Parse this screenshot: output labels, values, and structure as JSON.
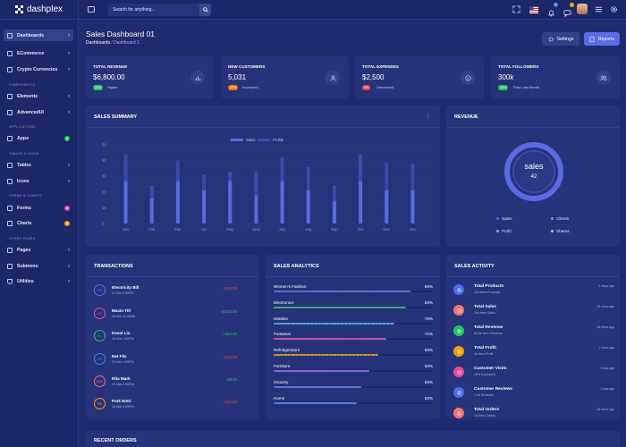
{
  "brand": {
    "name": "dashplex"
  },
  "header": {
    "search_placeholder": "Search for anything...",
    "notif_count_1": "1",
    "notif_count_2": "2"
  },
  "sidebar": {
    "items": [
      {
        "label": "Dashboards"
      },
      {
        "label": "ECommerce"
      },
      {
        "label": "Crypto Currencies"
      },
      {
        "label": "Elements"
      },
      {
        "label": "AdvancedUI"
      },
      {
        "label": "Apps",
        "badge": "2"
      },
      {
        "label": "Tables"
      },
      {
        "label": "Icons"
      },
      {
        "label": "Forms",
        "badge": "3"
      },
      {
        "label": "Charts",
        "badge": "4"
      },
      {
        "label": "Pages"
      },
      {
        "label": "Submenu"
      },
      {
        "label": "Utilities"
      }
    ],
    "headings": [
      "COMPONENTS",
      "APPLICATIONS",
      "TABLES & ICONS",
      "FORMS & CHARTS",
      "OTHER PAGES"
    ],
    "badge_colors": {
      "apps": "#22c55e",
      "forms": "#ec4899",
      "charts": "#f59e0b"
    }
  },
  "page": {
    "title": "Sales Dashboard 01",
    "breadcrumb_root": "Dashboards",
    "breadcrumb_current": "/ Dashboard 1",
    "settings_label": "Settings",
    "reports_label": "Reports"
  },
  "stats": [
    {
      "label": "TOTAL REVENUE",
      "value": "$6,800.00",
      "pill": "20%",
      "note": "Higher",
      "pill_color": "#22c55e",
      "icon": "bar-chart-icon"
    },
    {
      "label": "NEW CUSTOMERS",
      "value": "5,031",
      "pill": "20%",
      "note": "Increased",
      "pill_color": "#f97316",
      "icon": "user-icon"
    },
    {
      "label": "TOTAL EXPENSES",
      "value": "$2,500",
      "pill": "5%",
      "note": "Decreased",
      "pill_color": "#ef4444",
      "icon": "dollar-icon"
    },
    {
      "label": "TOTAL FOLLOWERS",
      "value": "300k",
      "pill": "10%",
      "note": "Than Last Month",
      "pill_color": "#22c55e",
      "icon": "users-icon"
    }
  ],
  "sales_summary": {
    "title": "SALES SUMMARY"
  },
  "chart_data": {
    "type": "bar",
    "title": "SALES SUMMARY",
    "categories": [
      "Jan",
      "Feb",
      "Mar",
      "Apr",
      "May",
      "June",
      "July",
      "Aug",
      "Sep",
      "Oct",
      "Nov",
      "Dec"
    ],
    "series": [
      {
        "name": "Sales",
        "values": [
          27,
          16,
          27,
          21,
          27,
          18,
          27,
          21,
          14,
          27,
          21,
          21
        ],
        "color": "#5a6ae0"
      },
      {
        "name": "Profits",
        "values": [
          44,
          24,
          40,
          31,
          33,
          33,
          42,
          36,
          24,
          44,
          39,
          38
        ],
        "color": "#3c4aaa"
      }
    ],
    "ylim": [
      0,
      50
    ],
    "yticks": [
      "0",
      "5",
      "10",
      "15",
      "20",
      "25",
      "30",
      "35",
      "40",
      "45",
      "50"
    ],
    "legend_position": "top-center",
    "grid": true
  },
  "revenue": {
    "title": "REVENUE",
    "center_label": "sales",
    "center_value": "42",
    "legend": [
      {
        "label": "Sales",
        "color": "#5a6ae0"
      },
      {
        "label": "Clients",
        "color": "#7f8be8"
      },
      {
        "label": "Profit",
        "color": "#9aa3e6"
      },
      {
        "label": "Shares",
        "color": "#b5bcef"
      }
    ]
  },
  "transactions": {
    "title": "TRANSACTIONS",
    "items": [
      {
        "initials": "EB",
        "name": "Electricity Bill",
        "date": "11 Mar 3:00PM",
        "amount": "-$15.00",
        "color": "#4f6cf0",
        "amt_color": "#ef4444"
      },
      {
        "initials": "MT",
        "name": "Maxin Till",
        "date": "16 Mar 11:00AM",
        "amount": "+$100.00",
        "color": "#ec4899",
        "amt_color": "#22c55e"
      },
      {
        "initials": "KL",
        "name": "Keval Lia",
        "date": "16 Mar 1:00PM",
        "amount": "+$80.00",
        "color": "#22c55e",
        "amt_color": "#22c55e"
      },
      {
        "initials": "NF",
        "name": "Net Flix",
        "date": "20 Mar 4:00PM",
        "amount": "-$10.00",
        "color": "#3b82f6",
        "amt_color": "#ef4444"
      },
      {
        "initials": "RM",
        "name": "Rita Mark",
        "date": "20 Mar 4:00PM",
        "amount": "+$125",
        "color": "#f87171",
        "amt_color": "#22c55e"
      },
      {
        "initials": "PE",
        "name": "Park Entri",
        "date": "26 Mar 4:00PM",
        "amount": "-$40.00",
        "color": "#f59e0b",
        "amt_color": "#ef4444"
      }
    ]
  },
  "sales_analytics": {
    "title": "SALES ANALYTICS",
    "items": [
      {
        "label": "Women's Fashion",
        "pct": "86%",
        "value": 86,
        "color": "#5a6ae0"
      },
      {
        "label": "Electronics",
        "pct": "83%",
        "value": 83,
        "color": "#22c55e"
      },
      {
        "label": "Mobiles",
        "pct": "76%",
        "value": 76,
        "color": "#38bdf8"
      },
      {
        "label": "Footwear",
        "pct": "71%",
        "value": 71,
        "color": "#ec4899"
      },
      {
        "label": "Refridgerators",
        "pct": "66%",
        "value": 66,
        "color": "#f59e0b"
      },
      {
        "label": "Furniture",
        "pct": "60%",
        "value": 60,
        "color": "#a855f7"
      },
      {
        "label": "Grocery",
        "pct": "55%",
        "value": 55,
        "color": "#6366f1"
      },
      {
        "label": "Home",
        "pct": "52%",
        "value": 52,
        "color": "#3b82f6"
      }
    ]
  },
  "sales_activity": {
    "title": "SALES ACTIVITY",
    "items": [
      {
        "title": "Total Products",
        "sub": "12k New Products",
        "time": "2 days ago",
        "color": "#4f6cf0",
        "icon": "cart-icon"
      },
      {
        "title": "Total Sales",
        "sub": "10k New Sales",
        "time": "23 mins ago",
        "color": "#f87171",
        "icon": "bag-icon"
      },
      {
        "title": "Total Revenue",
        "sub": "22.5k New Revenue",
        "time": "46 mins ago",
        "color": "#22c55e",
        "icon": "dollar-icon"
      },
      {
        "title": "Total Profit",
        "sub": "4k New Profit",
        "time": "1 hour ago",
        "color": "#f59e0b",
        "icon": "coin-icon"
      },
      {
        "title": "Customer Visits",
        "sub": "15% Increased",
        "time": "1 day ago",
        "color": "#ec4899",
        "icon": "eye-icon"
      },
      {
        "title": "Customer Reviews",
        "sub": "1.4k Reviews",
        "time": "1 day ago",
        "color": "#4f6cf0",
        "icon": "edit-icon"
      },
      {
        "title": "Total Orders",
        "sub": "1k New Orders",
        "time": "35 mins ago",
        "color": "#f87171",
        "icon": "order-icon"
      }
    ]
  },
  "recent_orders": {
    "title": "RECENT ORDERS"
  }
}
